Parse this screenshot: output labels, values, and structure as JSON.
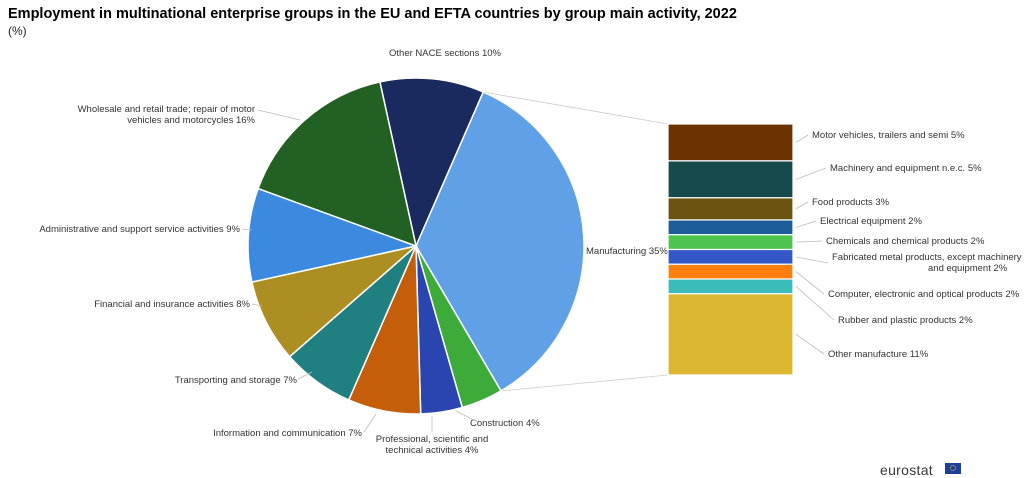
{
  "title": "Employment in multinational enterprise groups in the EU and EFTA countries by group main activity, 2022",
  "subtitle": "(%)",
  "footer": {
    "brand": "eurostat"
  },
  "chart_data": [
    {
      "type": "pie",
      "title": "Employment in multinational enterprise groups in the EU and EFTA countries by group main activity, 2022",
      "unit": "%",
      "slices": [
        {
          "label": "Other NACE sections",
          "value": 10,
          "color": "#1a2a5e"
        },
        {
          "label": "Manufacturing",
          "value": 35,
          "color": "#5fa0e6"
        },
        {
          "label": "Construction",
          "value": 4,
          "color": "#3cab3a"
        },
        {
          "label": "Professional, scientific and technical activities",
          "value": 4,
          "color": "#2b45b0"
        },
        {
          "label": "Information and communication",
          "value": 7,
          "color": "#c45e0a"
        },
        {
          "label": "Transporting and storage",
          "value": 7,
          "color": "#208080"
        },
        {
          "label": "Financial and insurance activities",
          "value": 8,
          "color": "#ad8e22"
        },
        {
          "label": "Administrative and support service activities",
          "value": 9,
          "color": "#3b8ae0"
        },
        {
          "label": "Wholesale and retail trade; repair of motor vehicles and motorcycles",
          "value": 16,
          "color": "#236023"
        }
      ]
    },
    {
      "type": "bar",
      "stacked": true,
      "breakdown_of": "Manufacturing",
      "unit": "%",
      "segments": [
        {
          "label": "Motor vehicles, trailers and semi",
          "value": 5,
          "color": "#6b3300"
        },
        {
          "label": "Machinery and equipment n.e.c.",
          "value": 5,
          "color": "#174a4a"
        },
        {
          "label": "Food products",
          "value": 3,
          "color": "#6b5312"
        },
        {
          "label": "Electrical equipment",
          "value": 2,
          "color": "#1b5c99"
        },
        {
          "label": "Chemicals and chemical products",
          "value": 2,
          "color": "#4dc44d"
        },
        {
          "label": "Fabricated metal products, except machinery and equipment",
          "value": 2,
          "color": "#3357c9"
        },
        {
          "label": "Computer, electronic and optical products",
          "value": 2,
          "color": "#ff7f0e"
        },
        {
          "label": "Rubber and plastic products",
          "value": 2,
          "color": "#3cbcb8"
        },
        {
          "label": "Other manufacture",
          "value": 11,
          "color": "#dbb732"
        }
      ]
    }
  ]
}
